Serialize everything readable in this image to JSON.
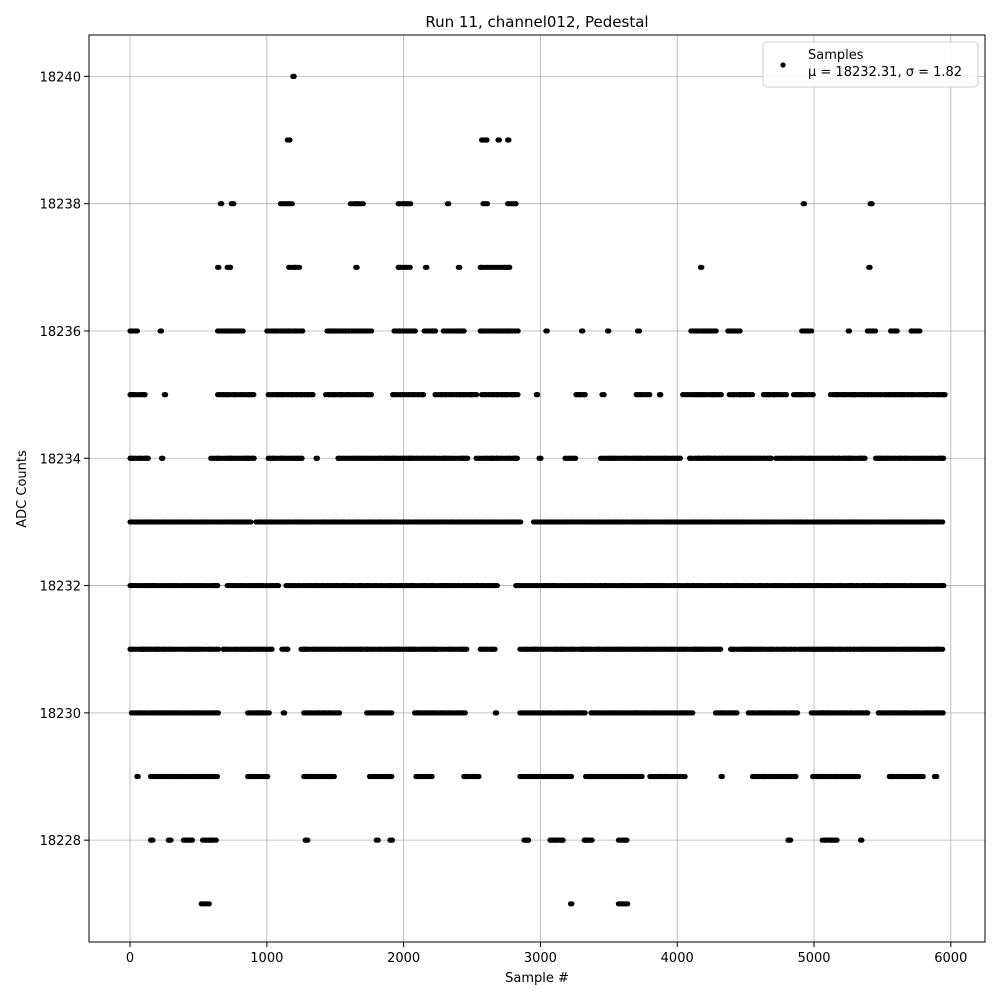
{
  "chart_data": {
    "type": "scatter",
    "title": "Run 11, channel012, Pedestal",
    "xlabel": "Sample #",
    "ylabel": "ADC Counts",
    "xlim": [
      -300,
      6250
    ],
    "ylim": [
      18226.4,
      18240.65
    ],
    "x_ticks": [
      0,
      1000,
      2000,
      3000,
      4000,
      5000,
      6000
    ],
    "y_ticks": [
      18228,
      18230,
      18232,
      18234,
      18236,
      18238,
      18240
    ],
    "grid": true,
    "legend_position": "top-right",
    "marker_color": "#000000",
    "series": [
      {
        "name": "Samples",
        "stats_label": "μ = 18232.31, σ = 1.82",
        "n_samples": 6000,
        "values_by_level": [
          {
            "y": 18227,
            "segments": [
              [
                520,
                590
              ],
              [
                3220,
                3230
              ],
              [
                3570,
                3640
              ]
            ]
          },
          {
            "y": 18228,
            "segments": [
              [
                150,
                170
              ],
              [
                280,
                300
              ],
              [
                390,
                470
              ],
              [
                530,
                640
              ],
              [
                1280,
                1300
              ],
              [
                1800,
                1820
              ],
              [
                1900,
                1920
              ],
              [
                2880,
                2920
              ],
              [
                3070,
                3170
              ],
              [
                3320,
                3380
              ],
              [
                3570,
                3640
              ],
              [
                4810,
                4830
              ],
              [
                5060,
                5180
              ],
              [
                5340,
                5350
              ]
            ]
          },
          {
            "y": 18229,
            "segments": [
              [
                50,
                60
              ],
              [
                150,
                650
              ],
              [
                860,
                1010
              ],
              [
                1270,
                1500
              ],
              [
                1750,
                1920
              ],
              [
                2090,
                2220
              ],
              [
                2440,
                2560
              ],
              [
                2850,
                3240
              ],
              [
                3330,
                3750
              ],
              [
                3800,
                4060
              ],
              [
                4320,
                4330
              ],
              [
                4550,
                4870
              ],
              [
                4990,
                5340
              ],
              [
                5550,
                5800
              ],
              [
                5880,
                5900
              ]
            ]
          },
          {
            "y": 18230,
            "segments": [
              [
                10,
                650
              ],
              [
                860,
                1020
              ],
              [
                1120,
                1130
              ],
              [
                1270,
                1540
              ],
              [
                1730,
                1920
              ],
              [
                2080,
                2460
              ],
              [
                2670,
                2680
              ],
              [
                2850,
                3330
              ],
              [
                3370,
                4120
              ],
              [
                4280,
                4440
              ],
              [
                4520,
                4880
              ],
              [
                4980,
                5400
              ],
              [
                5470,
                5950
              ]
            ]
          },
          {
            "y": 18231,
            "segments": [
              [
                0,
                650
              ],
              [
                680,
                1040
              ],
              [
                1110,
                1160
              ],
              [
                1250,
                2470
              ],
              [
                2560,
                2680
              ],
              [
                2850,
                4330
              ],
              [
                4390,
                5950
              ]
            ]
          },
          {
            "y": 18232,
            "segments": [
              [
                0,
                650
              ],
              [
                710,
                1090
              ],
              [
                1140,
                2690
              ],
              [
                2820,
                5950
              ]
            ]
          },
          {
            "y": 18233,
            "segments": [
              [
                0,
                890
              ],
              [
                920,
                2860
              ],
              [
                2950,
                5950
              ]
            ]
          },
          {
            "y": 18234,
            "segments": [
              [
                0,
                140
              ],
              [
                230,
                240
              ],
              [
                590,
                910
              ],
              [
                1010,
                1270
              ],
              [
                1360,
                1370
              ],
              [
                1520,
                2480
              ],
              [
                2530,
                2840
              ],
              [
                2990,
                3010
              ],
              [
                3180,
                3260
              ],
              [
                3440,
                4030
              ],
              [
                4090,
                4700
              ],
              [
                4720,
                5380
              ],
              [
                5450,
                5950
              ]
            ]
          },
          {
            "y": 18235,
            "segments": [
              [
                0,
                110
              ],
              [
                250,
                260
              ],
              [
                640,
                910
              ],
              [
                1010,
                1350
              ],
              [
                1430,
                1770
              ],
              [
                1920,
                2150
              ],
              [
                2230,
                2540
              ],
              [
                2570,
                2840
              ],
              [
                2970,
                2980
              ],
              [
                3260,
                3330
              ],
              [
                3450,
                3470
              ],
              [
                3700,
                3800
              ],
              [
                3870,
                3880
              ],
              [
                4040,
                4330
              ],
              [
                4380,
                4560
              ],
              [
                4630,
                4800
              ],
              [
                4850,
                5000
              ],
              [
                5120,
                5960
              ]
            ]
          },
          {
            "y": 18236,
            "segments": [
              [
                0,
                60
              ],
              [
                220,
                230
              ],
              [
                640,
                830
              ],
              [
                1000,
                1270
              ],
              [
                1440,
                1770
              ],
              [
                1930,
                2090
              ],
              [
                2150,
                2240
              ],
              [
                2290,
                2450
              ],
              [
                2560,
                2840
              ],
              [
                3040,
                3050
              ],
              [
                3300,
                3310
              ],
              [
                3490,
                3500
              ],
              [
                3710,
                3730
              ],
              [
                4100,
                4290
              ],
              [
                4370,
                4460
              ],
              [
                4910,
                4990
              ],
              [
                5250,
                5260
              ],
              [
                5390,
                5450
              ],
              [
                5560,
                5610
              ],
              [
                5710,
                5780
              ]
            ]
          },
          {
            "y": 18237,
            "segments": [
              [
                640,
                650
              ],
              [
                710,
                740
              ],
              [
                1160,
                1250
              ],
              [
                1650,
                1660
              ],
              [
                1960,
                2060
              ],
              [
                2160,
                2170
              ],
              [
                2400,
                2410
              ],
              [
                2560,
                2780
              ],
              [
                4170,
                4180
              ],
              [
                5400,
                5410
              ]
            ]
          },
          {
            "y": 18238,
            "segments": [
              [
                660,
                670
              ],
              [
                740,
                760
              ],
              [
                1100,
                1190
              ],
              [
                1610,
                1710
              ],
              [
                1960,
                2060
              ],
              [
                2320,
                2330
              ],
              [
                2580,
                2620
              ],
              [
                2760,
                2830
              ],
              [
                4920,
                4930
              ],
              [
                5410,
                5430
              ]
            ]
          },
          {
            "y": 18239,
            "segments": [
              [
                1150,
                1170
              ],
              [
                2570,
                2610
              ],
              [
                2690,
                2700
              ],
              [
                2760,
                2770
              ]
            ]
          },
          {
            "y": 18240,
            "segments": [
              [
                1190,
                1200
              ]
            ]
          }
        ]
      }
    ]
  }
}
